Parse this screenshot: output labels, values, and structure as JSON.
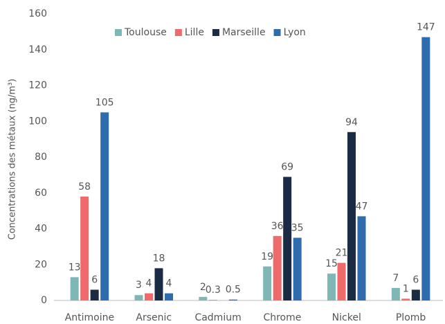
{
  "chart_data": {
    "type": "bar",
    "ylabel": "Concentrations des métaux (ng/m³)",
    "categories": [
      "Antimoine",
      "Arsenic",
      "Cadmium",
      "Chrome",
      "Nickel",
      "Plomb"
    ],
    "series": [
      {
        "name": "Toulouse",
        "color": "#7fb7b7",
        "values": [
          13,
          3,
          2,
          19,
          15,
          7
        ]
      },
      {
        "name": "Lille",
        "color": "#ef6a6a",
        "values": [
          58,
          4,
          0.3,
          36,
          21,
          1
        ]
      },
      {
        "name": "Marseille",
        "color": "#1b2b44",
        "values": [
          6,
          18,
          null,
          69,
          94,
          6
        ]
      },
      {
        "name": "Lyon",
        "color": "#2f6cae",
        "values": [
          105,
          4,
          0.5,
          35,
          47,
          147
        ]
      }
    ],
    "ylim": [
      0,
      160
    ],
    "yticks": [
      0,
      20,
      40,
      60,
      80,
      100,
      120,
      140,
      160
    ],
    "grid": false,
    "legend": "top"
  }
}
